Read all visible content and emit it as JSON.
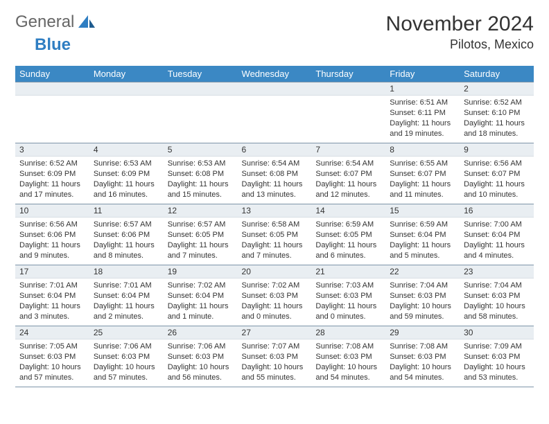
{
  "logo": {
    "text1": "General",
    "text2": "Blue"
  },
  "title": "November 2024",
  "location": "Pilotos, Mexico",
  "colors": {
    "header_bg": "#3b88c4",
    "header_text": "#ffffff",
    "daynum_bg": "#e9eef2",
    "border": "#7d94a8",
    "text": "#333333",
    "logo_gray": "#666666",
    "logo_blue": "#2f7ec2",
    "page_bg": "#ffffff"
  },
  "typography": {
    "title_fontsize": 30,
    "location_fontsize": 18,
    "dayheader_fontsize": 13,
    "daynum_fontsize": 12,
    "body_fontsize": 11
  },
  "day_headers": [
    "Sunday",
    "Monday",
    "Tuesday",
    "Wednesday",
    "Thursday",
    "Friday",
    "Saturday"
  ],
  "weeks": [
    [
      null,
      null,
      null,
      null,
      null,
      {
        "num": "1",
        "sunrise": "Sunrise: 6:51 AM",
        "sunset": "Sunset: 6:11 PM",
        "daylight": "Daylight: 11 hours and 19 minutes."
      },
      {
        "num": "2",
        "sunrise": "Sunrise: 6:52 AM",
        "sunset": "Sunset: 6:10 PM",
        "daylight": "Daylight: 11 hours and 18 minutes."
      }
    ],
    [
      {
        "num": "3",
        "sunrise": "Sunrise: 6:52 AM",
        "sunset": "Sunset: 6:09 PM",
        "daylight": "Daylight: 11 hours and 17 minutes."
      },
      {
        "num": "4",
        "sunrise": "Sunrise: 6:53 AM",
        "sunset": "Sunset: 6:09 PM",
        "daylight": "Daylight: 11 hours and 16 minutes."
      },
      {
        "num": "5",
        "sunrise": "Sunrise: 6:53 AM",
        "sunset": "Sunset: 6:08 PM",
        "daylight": "Daylight: 11 hours and 15 minutes."
      },
      {
        "num": "6",
        "sunrise": "Sunrise: 6:54 AM",
        "sunset": "Sunset: 6:08 PM",
        "daylight": "Daylight: 11 hours and 13 minutes."
      },
      {
        "num": "7",
        "sunrise": "Sunrise: 6:54 AM",
        "sunset": "Sunset: 6:07 PM",
        "daylight": "Daylight: 11 hours and 12 minutes."
      },
      {
        "num": "8",
        "sunrise": "Sunrise: 6:55 AM",
        "sunset": "Sunset: 6:07 PM",
        "daylight": "Daylight: 11 hours and 11 minutes."
      },
      {
        "num": "9",
        "sunrise": "Sunrise: 6:56 AM",
        "sunset": "Sunset: 6:07 PM",
        "daylight": "Daylight: 11 hours and 10 minutes."
      }
    ],
    [
      {
        "num": "10",
        "sunrise": "Sunrise: 6:56 AM",
        "sunset": "Sunset: 6:06 PM",
        "daylight": "Daylight: 11 hours and 9 minutes."
      },
      {
        "num": "11",
        "sunrise": "Sunrise: 6:57 AM",
        "sunset": "Sunset: 6:06 PM",
        "daylight": "Daylight: 11 hours and 8 minutes."
      },
      {
        "num": "12",
        "sunrise": "Sunrise: 6:57 AM",
        "sunset": "Sunset: 6:05 PM",
        "daylight": "Daylight: 11 hours and 7 minutes."
      },
      {
        "num": "13",
        "sunrise": "Sunrise: 6:58 AM",
        "sunset": "Sunset: 6:05 PM",
        "daylight": "Daylight: 11 hours and 7 minutes."
      },
      {
        "num": "14",
        "sunrise": "Sunrise: 6:59 AM",
        "sunset": "Sunset: 6:05 PM",
        "daylight": "Daylight: 11 hours and 6 minutes."
      },
      {
        "num": "15",
        "sunrise": "Sunrise: 6:59 AM",
        "sunset": "Sunset: 6:04 PM",
        "daylight": "Daylight: 11 hours and 5 minutes."
      },
      {
        "num": "16",
        "sunrise": "Sunrise: 7:00 AM",
        "sunset": "Sunset: 6:04 PM",
        "daylight": "Daylight: 11 hours and 4 minutes."
      }
    ],
    [
      {
        "num": "17",
        "sunrise": "Sunrise: 7:01 AM",
        "sunset": "Sunset: 6:04 PM",
        "daylight": "Daylight: 11 hours and 3 minutes."
      },
      {
        "num": "18",
        "sunrise": "Sunrise: 7:01 AM",
        "sunset": "Sunset: 6:04 PM",
        "daylight": "Daylight: 11 hours and 2 minutes."
      },
      {
        "num": "19",
        "sunrise": "Sunrise: 7:02 AM",
        "sunset": "Sunset: 6:04 PM",
        "daylight": "Daylight: 11 hours and 1 minute."
      },
      {
        "num": "20",
        "sunrise": "Sunrise: 7:02 AM",
        "sunset": "Sunset: 6:03 PM",
        "daylight": "Daylight: 11 hours and 0 minutes."
      },
      {
        "num": "21",
        "sunrise": "Sunrise: 7:03 AM",
        "sunset": "Sunset: 6:03 PM",
        "daylight": "Daylight: 11 hours and 0 minutes."
      },
      {
        "num": "22",
        "sunrise": "Sunrise: 7:04 AM",
        "sunset": "Sunset: 6:03 PM",
        "daylight": "Daylight: 10 hours and 59 minutes."
      },
      {
        "num": "23",
        "sunrise": "Sunrise: 7:04 AM",
        "sunset": "Sunset: 6:03 PM",
        "daylight": "Daylight: 10 hours and 58 minutes."
      }
    ],
    [
      {
        "num": "24",
        "sunrise": "Sunrise: 7:05 AM",
        "sunset": "Sunset: 6:03 PM",
        "daylight": "Daylight: 10 hours and 57 minutes."
      },
      {
        "num": "25",
        "sunrise": "Sunrise: 7:06 AM",
        "sunset": "Sunset: 6:03 PM",
        "daylight": "Daylight: 10 hours and 57 minutes."
      },
      {
        "num": "26",
        "sunrise": "Sunrise: 7:06 AM",
        "sunset": "Sunset: 6:03 PM",
        "daylight": "Daylight: 10 hours and 56 minutes."
      },
      {
        "num": "27",
        "sunrise": "Sunrise: 7:07 AM",
        "sunset": "Sunset: 6:03 PM",
        "daylight": "Daylight: 10 hours and 55 minutes."
      },
      {
        "num": "28",
        "sunrise": "Sunrise: 7:08 AM",
        "sunset": "Sunset: 6:03 PM",
        "daylight": "Daylight: 10 hours and 54 minutes."
      },
      {
        "num": "29",
        "sunrise": "Sunrise: 7:08 AM",
        "sunset": "Sunset: 6:03 PM",
        "daylight": "Daylight: 10 hours and 54 minutes."
      },
      {
        "num": "30",
        "sunrise": "Sunrise: 7:09 AM",
        "sunset": "Sunset: 6:03 PM",
        "daylight": "Daylight: 10 hours and 53 minutes."
      }
    ]
  ]
}
